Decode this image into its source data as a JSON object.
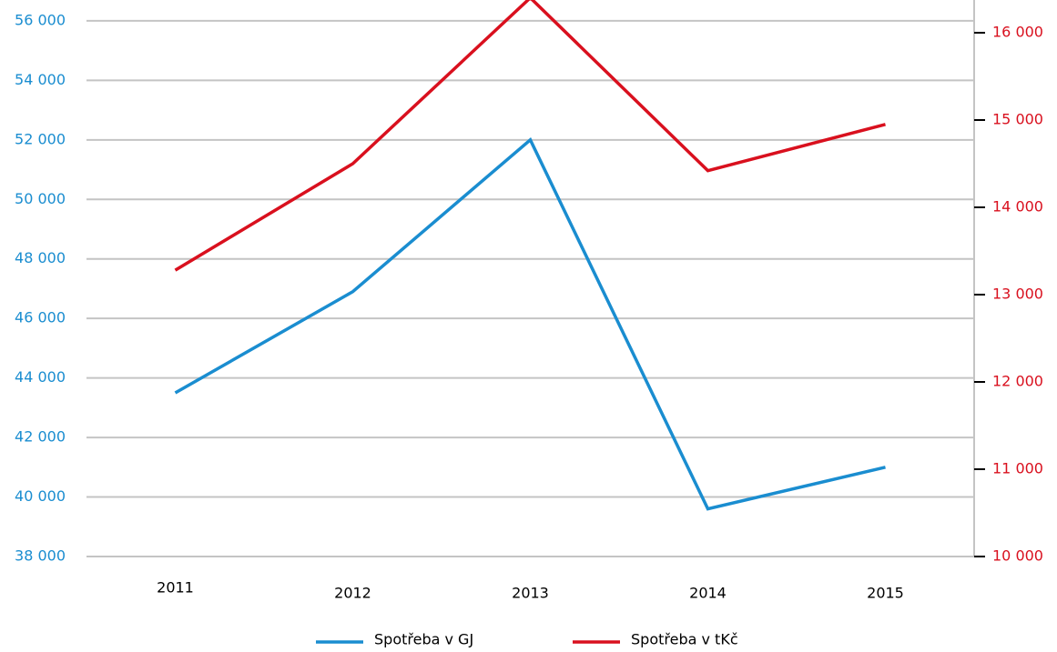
{
  "chart_data": {
    "type": "line",
    "categories": [
      "2011",
      "2012",
      "2013",
      "2014",
      "2015"
    ],
    "series": [
      {
        "name": "Spotřeba v GJ",
        "color": "#1a8dd0",
        "values": [
          43500,
          46900,
          52000,
          39600,
          41000
        ]
      },
      {
        "name": "Spotřeba v tKč",
        "color": "#d9101e",
        "axis": "y2",
        "values": [
          13280,
          14500,
          16400,
          14420,
          14950
        ]
      }
    ],
    "ylim": [
      38000,
      56700
    ],
    "yticks": [
      {
        "value": 38000,
        "label": "38 000"
      },
      {
        "value": 40000,
        "label": "40 000"
      },
      {
        "value": 42000,
        "label": "42 000"
      },
      {
        "value": 44000,
        "label": "44 000"
      },
      {
        "value": 46000,
        "label": "46 000"
      },
      {
        "value": 48000,
        "label": "48 000"
      },
      {
        "value": 50000,
        "label": "50 000"
      },
      {
        "value": 52000,
        "label": "52 000"
      },
      {
        "value": 54000,
        "label": "54 000"
      },
      {
        "value": 56000,
        "label": "56 000"
      }
    ],
    "y2lim": [
      10000,
      16375
    ],
    "y2ticks": [
      {
        "value": 10000,
        "label": "10 000"
      },
      {
        "value": 11000,
        "label": "11 000"
      },
      {
        "value": 12000,
        "label": "12 000"
      },
      {
        "value": 13000,
        "label": "13 000"
      },
      {
        "value": 14000,
        "label": "14 000"
      },
      {
        "value": 15000,
        "label": "15 000"
      },
      {
        "value": 16000,
        "label": "16 000"
      }
    ],
    "grid": true,
    "legend": "bottom"
  }
}
